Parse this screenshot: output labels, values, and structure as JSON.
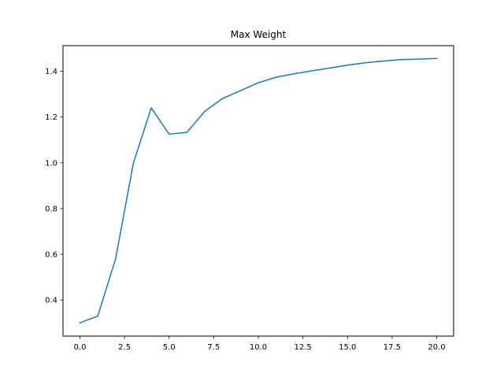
{
  "chart_data": {
    "type": "line",
    "title": "Max Weight",
    "xlabel": "",
    "ylabel": "",
    "xlim": [
      -0.95,
      20.95
    ],
    "ylim": [
      0.242,
      1.512
    ],
    "xticks": [
      0.0,
      2.5,
      5.0,
      7.5,
      10.0,
      12.5,
      15.0,
      17.5,
      20.0
    ],
    "xtick_labels": [
      "0.0",
      "2.5",
      "5.0",
      "7.5",
      "10.0",
      "12.5",
      "15.0",
      "17.5",
      "20.0"
    ],
    "yticks": [
      0.4,
      0.6,
      0.8,
      1.0,
      1.2,
      1.4
    ],
    "ytick_labels": [
      "0.4",
      "0.6",
      "0.8",
      "1.0",
      "1.2",
      "1.4"
    ],
    "grid": false,
    "series": [
      {
        "color": "#1f77b4",
        "x": [
          0,
          1,
          2,
          3,
          4,
          5,
          6,
          7,
          8,
          9,
          10,
          11,
          12,
          13,
          14,
          15,
          16,
          17,
          18,
          19,
          20
        ],
        "y": [
          0.3,
          0.33,
          0.58,
          1.0,
          1.24,
          1.125,
          1.133,
          1.225,
          1.281,
          1.315,
          1.35,
          1.374,
          1.389,
          1.402,
          1.414,
          1.427,
          1.437,
          1.445,
          1.451,
          1.453,
          1.456
        ]
      }
    ]
  }
}
